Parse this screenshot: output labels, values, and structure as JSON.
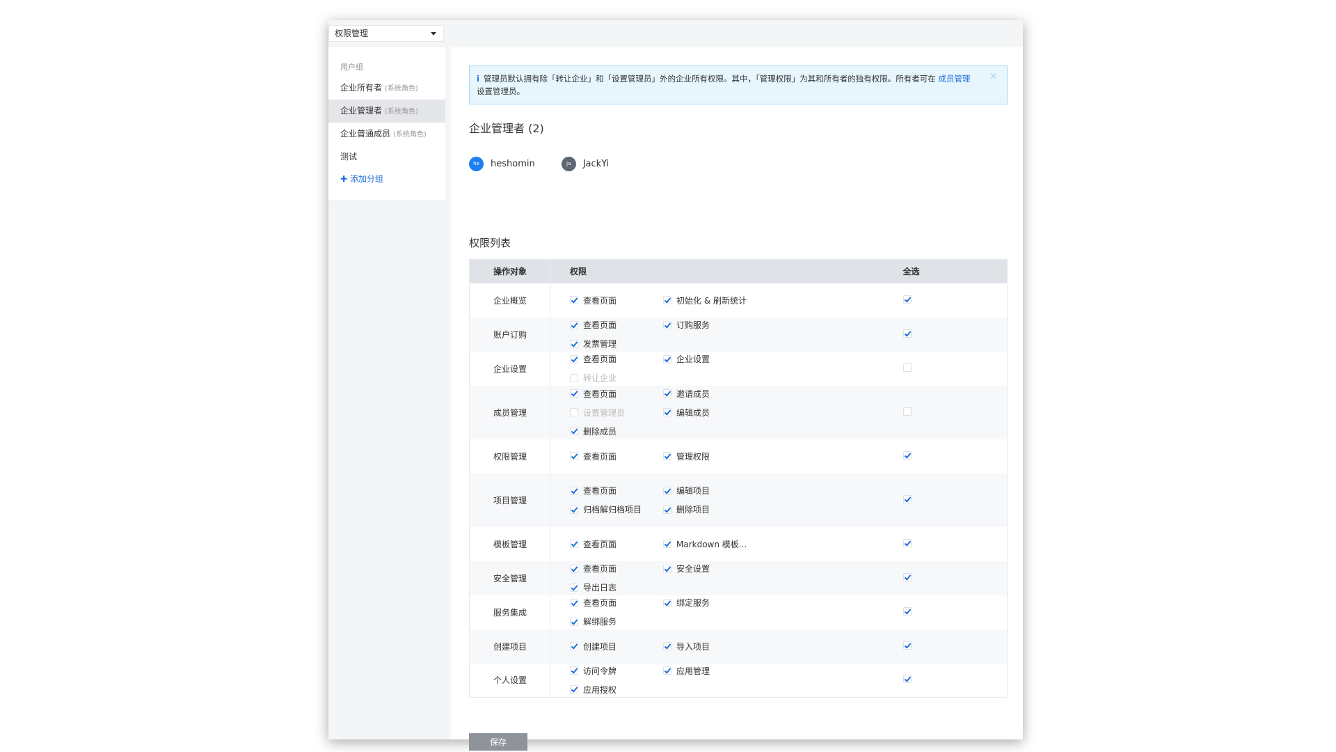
{
  "dropdown": {
    "value": "权限管理"
  },
  "sidebar": {
    "group_label": "用户组",
    "items": [
      {
        "label": "企业所有者",
        "tag": "(系统角色)",
        "active": false
      },
      {
        "label": "企业管理者",
        "tag": "(系统角色)",
        "active": true
      },
      {
        "label": "企业普通成员",
        "tag": "(系统角色)",
        "active": false
      },
      {
        "label": "测试",
        "tag": "",
        "active": false
      }
    ],
    "add_label": "添加分组"
  },
  "alert": {
    "text": "管理员默认拥有除「转让企业」和「设置管理员」外的企业所有权限。其中，「管理权限」为其和所有者的独有权限。所有者可在 ",
    "link": "成员管理",
    "text2": "设置管理员。",
    "close": "×"
  },
  "admins": {
    "title": "企业管理者 (2)",
    "users": [
      {
        "name": "heshomin",
        "initials": "he",
        "color": "#1e7ff0"
      },
      {
        "name": "JackYi",
        "initials": "Ja",
        "color": "#5d6673"
      }
    ]
  },
  "perm_list": {
    "title": "权限列表",
    "headers": {
      "object": "操作对象",
      "perm": "权限",
      "all": "全选"
    },
    "rows": [
      {
        "object": "企业概览",
        "all": true,
        "perms": [
          {
            "label": "查看页面",
            "checked": true
          },
          {
            "label": "初始化 & 刷新统计",
            "checked": true
          }
        ]
      },
      {
        "object": "账户订购",
        "all": true,
        "perms": [
          {
            "label": "查看页面",
            "checked": true
          },
          {
            "label": "订购服务",
            "checked": true
          },
          {
            "label": "发票管理",
            "checked": true
          }
        ]
      },
      {
        "object": "企业设置",
        "all": false,
        "perms": [
          {
            "label": "查看页面",
            "checked": true
          },
          {
            "label": "企业设置",
            "checked": true
          },
          {
            "label": "转让企业",
            "checked": false,
            "disabled": true
          }
        ]
      },
      {
        "object": "成员管理",
        "all": false,
        "perms": [
          {
            "label": "查看页面",
            "checked": true
          },
          {
            "label": "邀请成员",
            "checked": true
          },
          {
            "label": "设置管理员",
            "checked": false,
            "disabled": true
          },
          {
            "label": "编辑成员",
            "checked": true
          },
          {
            "label": "删除成员",
            "checked": true
          }
        ]
      },
      {
        "object": "权限管理",
        "all": true,
        "perms": [
          {
            "label": "查看页面",
            "checked": true
          },
          {
            "label": "管理权限",
            "checked": true
          }
        ]
      },
      {
        "object": "项目管理",
        "all": true,
        "perms": [
          {
            "label": "查看页面",
            "checked": true
          },
          {
            "label": "编辑项目",
            "checked": true
          },
          {
            "label": "归档解归档项目",
            "checked": true
          },
          {
            "label": "删除项目",
            "checked": true
          }
        ]
      },
      {
        "object": "模板管理",
        "all": true,
        "perms": [
          {
            "label": "查看页面",
            "checked": true
          },
          {
            "label": "Markdown 模板...",
            "checked": true
          }
        ]
      },
      {
        "object": "安全管理",
        "all": true,
        "perms": [
          {
            "label": "查看页面",
            "checked": true
          },
          {
            "label": "安全设置",
            "checked": true
          },
          {
            "label": "导出日志",
            "checked": true
          }
        ]
      },
      {
        "object": "服务集成",
        "all": true,
        "perms": [
          {
            "label": "查看页面",
            "checked": true
          },
          {
            "label": "绑定服务",
            "checked": true
          },
          {
            "label": "解绑服务",
            "checked": true
          }
        ]
      },
      {
        "object": "创建项目",
        "all": true,
        "perms": [
          {
            "label": "创建项目",
            "checked": true
          },
          {
            "label": "导入项目",
            "checked": true
          }
        ]
      },
      {
        "object": "个人设置",
        "all": true,
        "perms": [
          {
            "label": "访问令牌",
            "checked": true
          },
          {
            "label": "应用管理",
            "checked": true
          },
          {
            "label": "应用授权",
            "checked": true
          }
        ]
      }
    ]
  },
  "save_label": "保存"
}
